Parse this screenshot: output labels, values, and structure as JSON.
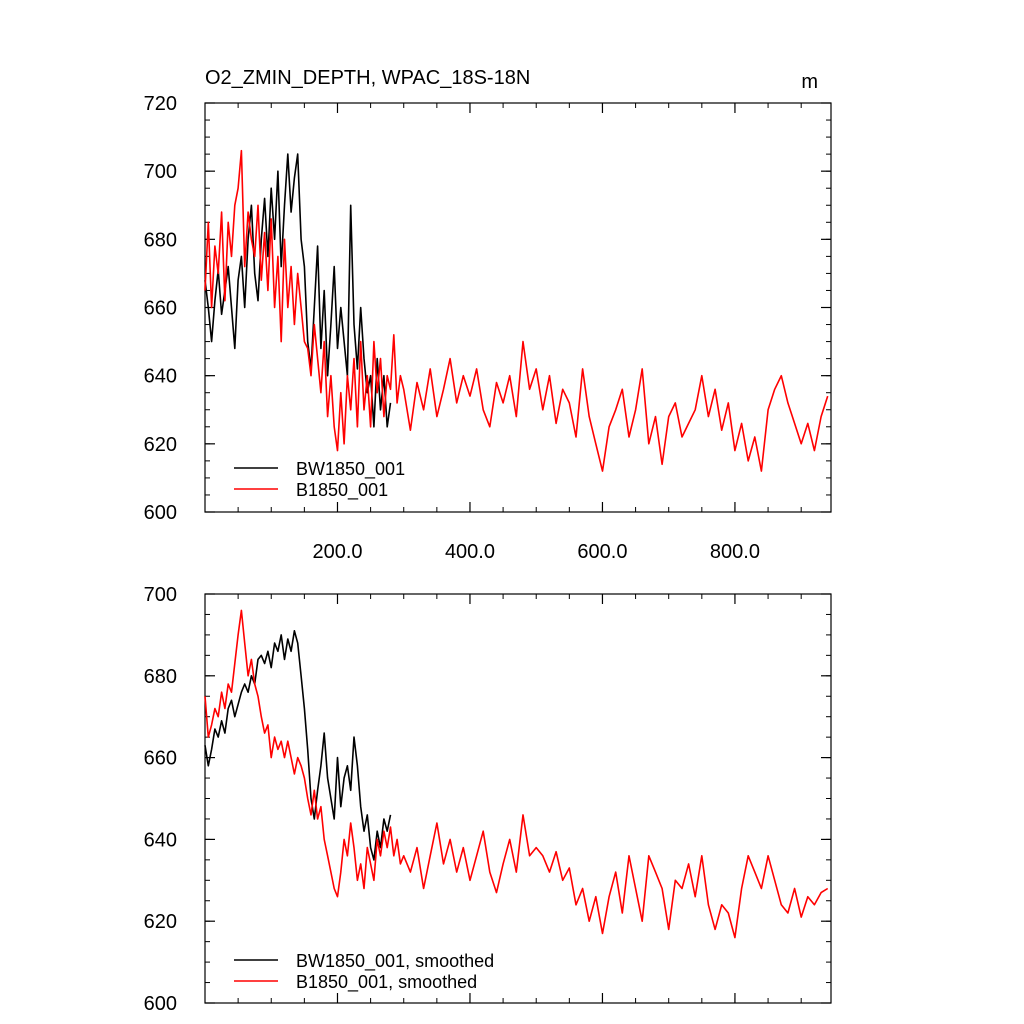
{
  "page": {
    "title": "O2_ZMIN_DEPTH, WPAC_18S-18N",
    "units": "m"
  },
  "colors": {
    "bw": "#000000",
    "b": "#ff0000"
  },
  "chart_data": [
    {
      "type": "line",
      "title": "O2_ZMIN_DEPTH, WPAC_18S-18N",
      "units_label": "m",
      "xlabel": "",
      "ylabel": "",
      "xlim": [
        0,
        945
      ],
      "ylim": [
        600,
        720
      ],
      "xticks": [
        200,
        400,
        600,
        800
      ],
      "xtick_labels": [
        "200.0",
        "400.0",
        "600.0",
        "800.0"
      ],
      "yticks": [
        600,
        620,
        640,
        660,
        680,
        700,
        720
      ],
      "ytick_labels": [
        "600",
        "620",
        "640",
        "660",
        "680",
        "700",
        "720"
      ],
      "legend_position": "bottom-left",
      "series": [
        {
          "name": "BW1850_001",
          "color": "#000000",
          "x": [
            0,
            5,
            10,
            15,
            20,
            25,
            30,
            35,
            40,
            45,
            50,
            55,
            60,
            65,
            70,
            75,
            80,
            85,
            90,
            95,
            100,
            105,
            110,
            115,
            120,
            125,
            130,
            135,
            140,
            145,
            150,
            155,
            160,
            165,
            170,
            175,
            180,
            185,
            190,
            195,
            200,
            205,
            210,
            215,
            220,
            225,
            230,
            235,
            240,
            245,
            250,
            255,
            260,
            265,
            270,
            275,
            280
          ],
          "values": [
            668,
            660,
            650,
            662,
            671,
            658,
            665,
            672,
            660,
            648,
            668,
            675,
            660,
            680,
            690,
            670,
            662,
            680,
            692,
            675,
            695,
            680,
            700,
            672,
            690,
            705,
            688,
            698,
            705,
            680,
            672,
            650,
            642,
            660,
            678,
            648,
            665,
            640,
            655,
            672,
            648,
            660,
            650,
            640,
            690,
            655,
            642,
            660,
            645,
            635,
            640,
            625,
            645,
            630,
            640,
            625,
            632
          ]
        },
        {
          "name": "B1850_001",
          "color": "#ff0000",
          "x": [
            0,
            5,
            10,
            15,
            20,
            25,
            30,
            35,
            40,
            45,
            50,
            55,
            60,
            65,
            70,
            75,
            80,
            85,
            90,
            95,
            100,
            105,
            110,
            115,
            120,
            125,
            130,
            135,
            140,
            145,
            150,
            155,
            160,
            165,
            170,
            175,
            180,
            185,
            190,
            195,
            200,
            205,
            210,
            215,
            220,
            225,
            230,
            235,
            240,
            245,
            250,
            255,
            260,
            265,
            270,
            275,
            280,
            285,
            290,
            295,
            300,
            310,
            320,
            330,
            340,
            350,
            360,
            370,
            380,
            390,
            400,
            410,
            420,
            430,
            440,
            450,
            460,
            470,
            480,
            490,
            500,
            510,
            520,
            530,
            540,
            550,
            560,
            570,
            580,
            590,
            600,
            610,
            620,
            630,
            640,
            650,
            660,
            670,
            680,
            690,
            700,
            710,
            720,
            730,
            740,
            750,
            760,
            770,
            780,
            790,
            800,
            810,
            820,
            830,
            840,
            850,
            860,
            870,
            880,
            890,
            900,
            910,
            920,
            930,
            940
          ],
          "values": [
            665,
            685,
            660,
            678,
            670,
            688,
            662,
            685,
            675,
            690,
            695,
            706,
            672,
            688,
            680,
            675,
            690,
            668,
            682,
            665,
            686,
            660,
            675,
            650,
            680,
            660,
            672,
            655,
            670,
            660,
            650,
            648,
            640,
            655,
            645,
            635,
            650,
            628,
            640,
            625,
            618,
            635,
            620,
            640,
            630,
            645,
            625,
            650,
            630,
            640,
            625,
            650,
            635,
            645,
            628,
            640,
            636,
            652,
            632,
            640,
            636,
            624,
            638,
            630,
            642,
            628,
            636,
            645,
            632,
            640,
            634,
            642,
            630,
            625,
            638,
            632,
            640,
            628,
            650,
            636,
            642,
            630,
            640,
            626,
            636,
            632,
            622,
            642,
            628,
            620,
            612,
            625,
            630,
            636,
            622,
            630,
            642,
            620,
            628,
            614,
            628,
            632,
            622,
            626,
            630,
            640,
            628,
            636,
            624,
            632,
            618,
            626,
            615,
            622,
            612,
            630,
            636,
            640,
            632,
            626,
            620,
            626,
            618,
            628,
            634
          ]
        }
      ]
    },
    {
      "type": "line",
      "title": "",
      "xlabel": "",
      "ylabel": "",
      "xlim": [
        0,
        945
      ],
      "ylim": [
        600,
        700
      ],
      "xticks": [
        200,
        400,
        600,
        800
      ],
      "xtick_labels": [],
      "yticks": [
        600,
        620,
        640,
        660,
        680,
        700
      ],
      "ytick_labels": [
        "600",
        "620",
        "640",
        "660",
        "680",
        "700"
      ],
      "legend_position": "bottom-left",
      "series": [
        {
          "name": "BW1850_001, smoothed",
          "color": "#000000",
          "x": [
            0,
            5,
            10,
            15,
            20,
            25,
            30,
            35,
            40,
            45,
            50,
            55,
            60,
            65,
            70,
            75,
            80,
            85,
            90,
            95,
            100,
            105,
            110,
            115,
            120,
            125,
            130,
            135,
            140,
            145,
            150,
            155,
            160,
            165,
            170,
            175,
            180,
            185,
            190,
            195,
            200,
            205,
            210,
            215,
            220,
            225,
            230,
            235,
            240,
            245,
            250,
            255,
            260,
            265,
            270,
            275,
            280
          ],
          "values": [
            663,
            658,
            662,
            667,
            665,
            669,
            666,
            672,
            674,
            670,
            673,
            676,
            678,
            676,
            680,
            678,
            684,
            685,
            683,
            686,
            682,
            688,
            686,
            690,
            684,
            689,
            686,
            691,
            688,
            680,
            672,
            662,
            650,
            645,
            652,
            658,
            666,
            655,
            650,
            645,
            660,
            648,
            655,
            658,
            652,
            665,
            658,
            648,
            642,
            646,
            638,
            635,
            642,
            638,
            645,
            642,
            646
          ]
        },
        {
          "name": "B1850_001, smoothed",
          "color": "#ff0000",
          "x": [
            0,
            5,
            10,
            15,
            20,
            25,
            30,
            35,
            40,
            45,
            50,
            55,
            60,
            65,
            70,
            75,
            80,
            85,
            90,
            95,
            100,
            105,
            110,
            115,
            120,
            125,
            130,
            135,
            140,
            145,
            150,
            155,
            160,
            165,
            170,
            175,
            180,
            185,
            190,
            195,
            200,
            205,
            210,
            215,
            220,
            225,
            230,
            235,
            240,
            245,
            250,
            255,
            260,
            265,
            270,
            275,
            280,
            285,
            290,
            295,
            300,
            310,
            320,
            330,
            340,
            350,
            360,
            370,
            380,
            390,
            400,
            410,
            420,
            430,
            440,
            450,
            460,
            470,
            480,
            490,
            500,
            510,
            520,
            530,
            540,
            550,
            560,
            570,
            580,
            590,
            600,
            610,
            620,
            630,
            640,
            650,
            660,
            670,
            680,
            690,
            700,
            710,
            720,
            730,
            740,
            750,
            760,
            770,
            780,
            790,
            800,
            810,
            820,
            830,
            840,
            850,
            860,
            870,
            880,
            890,
            900,
            910,
            920,
            930,
            940
          ],
          "values": [
            675,
            665,
            668,
            672,
            670,
            676,
            672,
            678,
            676,
            683,
            690,
            696,
            688,
            680,
            684,
            678,
            675,
            670,
            666,
            668,
            660,
            665,
            662,
            664,
            660,
            664,
            660,
            656,
            660,
            658,
            655,
            650,
            646,
            652,
            645,
            648,
            640,
            636,
            632,
            628,
            626,
            632,
            640,
            636,
            644,
            638,
            630,
            634,
            628,
            638,
            634,
            630,
            640,
            636,
            642,
            638,
            643,
            636,
            640,
            634,
            636,
            632,
            638,
            628,
            636,
            644,
            634,
            640,
            632,
            638,
            630,
            636,
            642,
            632,
            627,
            634,
            640,
            632,
            646,
            636,
            638,
            636,
            632,
            637,
            630,
            633,
            624,
            628,
            620,
            626,
            617,
            626,
            632,
            622,
            636,
            628,
            620,
            636,
            632,
            628,
            618,
            630,
            628,
            634,
            626,
            636,
            624,
            618,
            624,
            622,
            616,
            628,
            636,
            632,
            628,
            636,
            630,
            624,
            622,
            628,
            621,
            626,
            624,
            627,
            628
          ]
        }
      ]
    }
  ]
}
